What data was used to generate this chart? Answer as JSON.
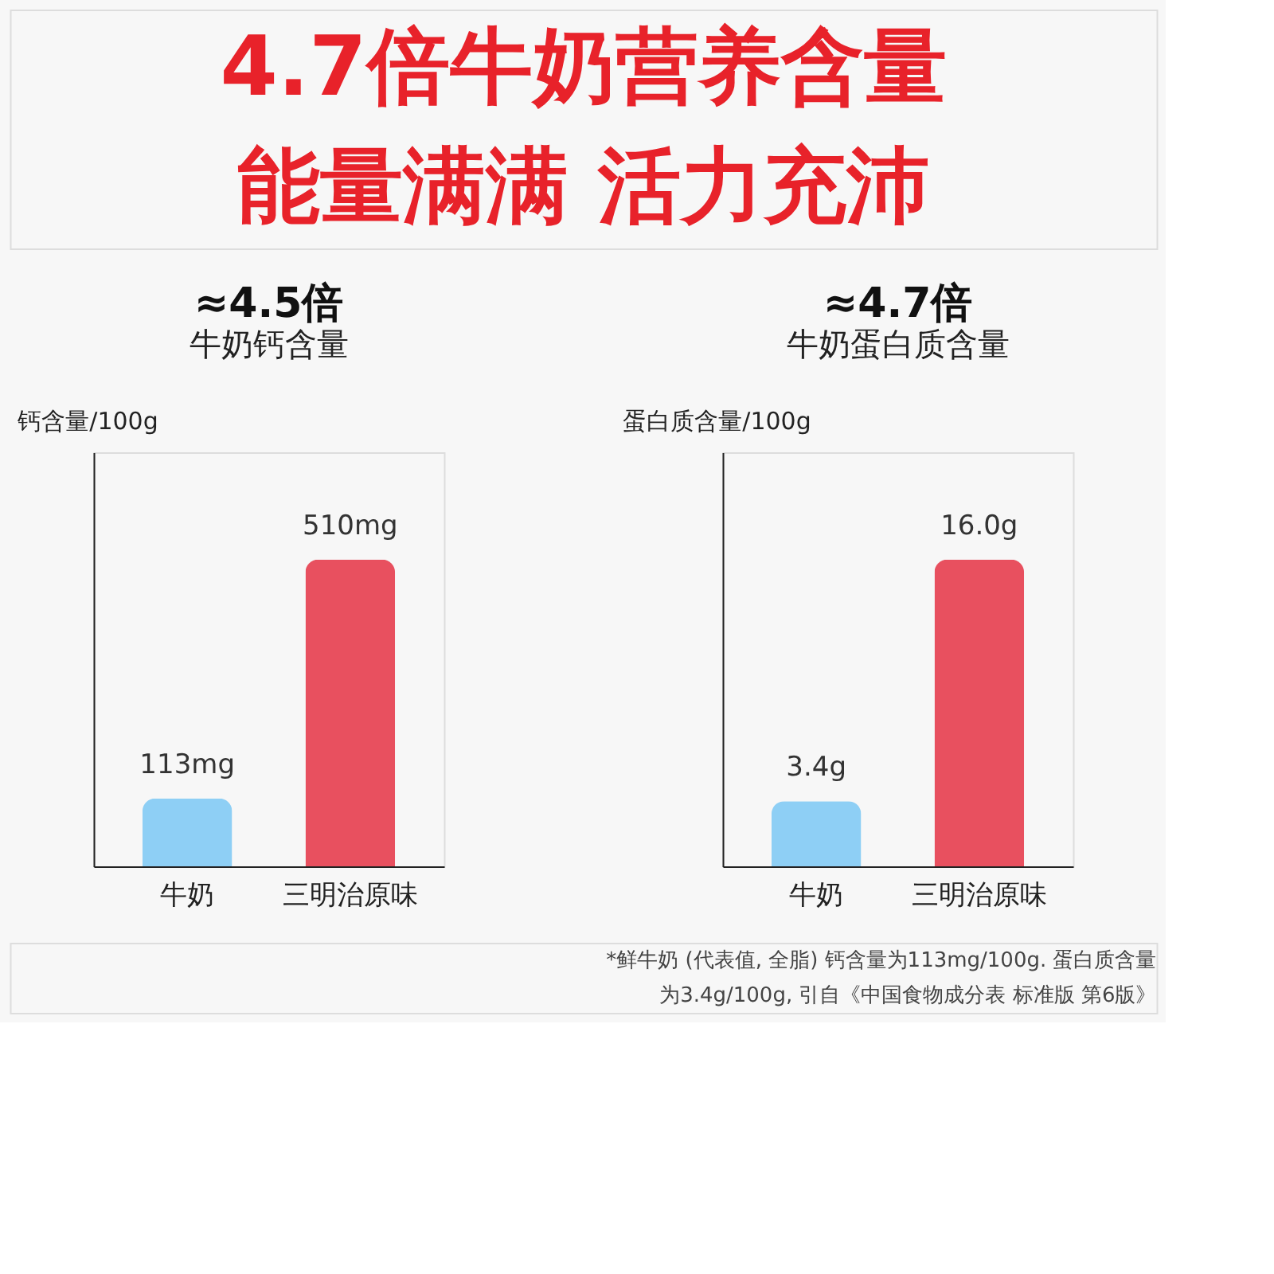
{
  "chart_data": [
    {
      "type": "bar",
      "title": "≈4.5倍",
      "subtitle": "牛奶钙含量",
      "ylabel": "钙含量/100g",
      "categories": [
        "牛奶",
        "三明治原味"
      ],
      "values": [
        113,
        510
      ],
      "value_labels": [
        "113mg",
        "510mg"
      ],
      "colors": [
        "#8ecff5",
        "#e8505f"
      ],
      "annotations": [
        "4.7倍牛奶营养含量",
        "能量满满  活力充沛"
      ]
    },
    {
      "type": "bar",
      "title": "≈4.7倍",
      "subtitle": "牛奶蛋白质含量",
      "ylabel": "蛋白质含量/100g",
      "categories": [
        "牛奶",
        "三明治原味"
      ],
      "values": [
        3.4,
        16.0
      ],
      "value_labels": [
        "3.4g",
        "16.0g"
      ],
      "colors": [
        "#8ecff5",
        "#e8505f"
      ],
      "annotations": [
        "*鲜牛奶 (代表值, 全脂) 钙含量为113mg/100g. 蛋白质含量",
        "为3.4g/100g, 引自《中国食物成分表 标准版 第6版》"
      ]
    }
  ]
}
